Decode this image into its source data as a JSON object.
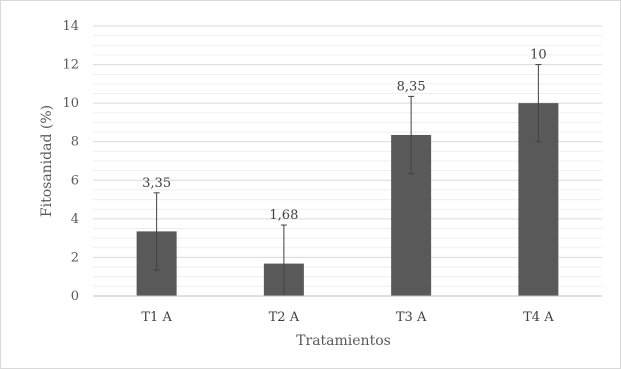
{
  "chart_data": {
    "type": "bar",
    "title": "",
    "xlabel": "Tratamientos",
    "ylabel": "Fitosanidad (%)",
    "categories": [
      "T1 A",
      "T2 A",
      "T3 A",
      "T4 A"
    ],
    "values": [
      3.35,
      1.68,
      8.35,
      10
    ],
    "value_labels": [
      "3,35",
      "1,68",
      "8,35",
      "10"
    ],
    "error_bars": [
      2,
      2,
      2,
      2
    ],
    "ylim": [
      0,
      14
    ],
    "yticks": [
      "0",
      "2",
      "4",
      "6",
      "8",
      "10",
      "12",
      "14"
    ],
    "grid": true,
    "legend": "none",
    "colors": {
      "bar": "#595959",
      "error": "#404040",
      "grid": "#d9d9d9"
    }
  }
}
